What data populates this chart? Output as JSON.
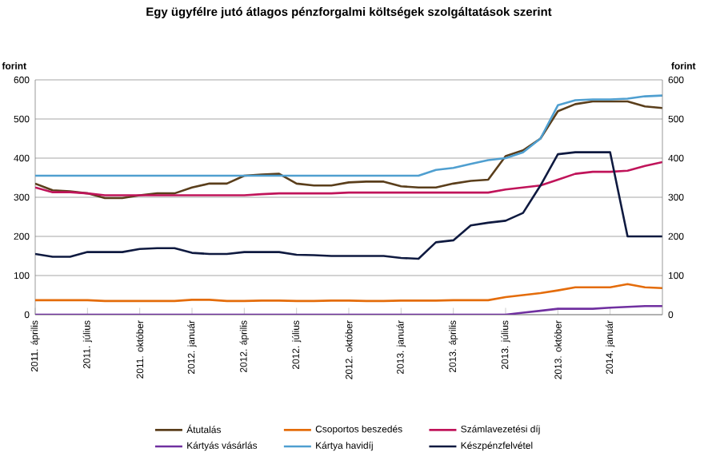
{
  "chart_data": {
    "type": "line",
    "title": "Egy ügyfélre jutó átlagos pénzforgalmi költségek szolgáltatások szerint",
    "ylabel": "forint",
    "y2label": "forint",
    "categories": [
      "2011. április",
      null,
      null,
      "2011. július",
      null,
      null,
      "2011. október",
      null,
      null,
      "2012. január",
      null,
      null,
      "2012. április",
      null,
      null,
      "2012. július",
      null,
      null,
      "2012. október",
      null,
      null,
      "2013. január",
      null,
      null,
      "2013. április",
      null,
      null,
      "2013. július",
      null,
      null,
      "2013. október",
      null,
      null,
      "2014. január",
      null,
      null,
      null
    ],
    "ylim": [
      0,
      600
    ],
    "yticks": [
      0,
      100,
      200,
      300,
      400,
      500,
      600
    ],
    "y2lim": [
      0,
      600
    ],
    "y2ticks": [
      0,
      100,
      200,
      300,
      400,
      500,
      600
    ],
    "grid": "y",
    "legend": "bottom",
    "marker": "none",
    "line_style": "solid",
    "series": [
      {
        "name": "Átutalás",
        "color": "#5a3e1b",
        "values": [
          335,
          318,
          315,
          310,
          298,
          298,
          305,
          310,
          310,
          325,
          335,
          335,
          355,
          358,
          360,
          335,
          330,
          330,
          338,
          340,
          340,
          328,
          325,
          325,
          335,
          342,
          345,
          405,
          420,
          450,
          520,
          538,
          545,
          545,
          545,
          532,
          528
        ]
      },
      {
        "name": "Csoportos beszedés",
        "color": "#e46c0a",
        "values": [
          37,
          37,
          37,
          37,
          35,
          35,
          35,
          35,
          35,
          38,
          38,
          35,
          35,
          36,
          36,
          35,
          35,
          36,
          36,
          35,
          35,
          36,
          36,
          36,
          37,
          37,
          37,
          45,
          50,
          55,
          62,
          70,
          70,
          70,
          78,
          70,
          68
        ]
      },
      {
        "name": "Számlavezetési díj",
        "color": "#c0145a",
        "values": [
          325,
          313,
          313,
          310,
          305,
          305,
          305,
          305,
          305,
          305,
          305,
          305,
          305,
          308,
          310,
          310,
          310,
          310,
          312,
          312,
          312,
          312,
          312,
          312,
          312,
          312,
          312,
          320,
          325,
          330,
          345,
          360,
          365,
          365,
          368,
          380,
          390
        ]
      },
      {
        "name": "Kártyás vásárlás",
        "color": "#7030a0",
        "values": [
          0,
          0,
          0,
          0,
          0,
          0,
          0,
          0,
          0,
          0,
          0,
          0,
          0,
          0,
          0,
          0,
          0,
          0,
          0,
          0,
          0,
          0,
          0,
          0,
          0,
          0,
          0,
          0,
          5,
          10,
          15,
          15,
          15,
          18,
          20,
          22,
          22
        ]
      },
      {
        "name": "Kártya havidíj",
        "color": "#4f9fd0",
        "values": [
          355,
          355,
          355,
          355,
          355,
          355,
          355,
          355,
          355,
          355,
          355,
          355,
          355,
          355,
          355,
          355,
          355,
          355,
          355,
          355,
          355,
          355,
          355,
          370,
          375,
          385,
          395,
          400,
          415,
          450,
          535,
          548,
          550,
          550,
          552,
          558,
          560
        ]
      },
      {
        "name": "Készpénzfelvétel",
        "color": "#0f1a40",
        "values": [
          155,
          148,
          148,
          160,
          160,
          160,
          168,
          170,
          170,
          158,
          155,
          155,
          160,
          160,
          160,
          153,
          152,
          150,
          150,
          150,
          150,
          145,
          143,
          185,
          190,
          228,
          235,
          240,
          260,
          330,
          410,
          415,
          415,
          415,
          200,
          200,
          200
        ]
      }
    ]
  }
}
